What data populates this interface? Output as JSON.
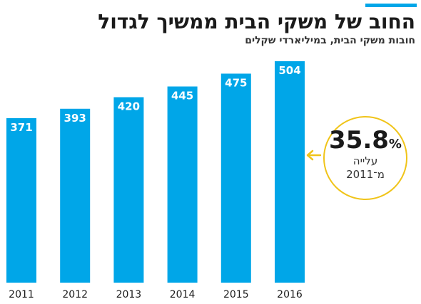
{
  "header": {
    "title": "החוב של משקי הבית ממשיך לגדול",
    "subtitle": "חובות משקי הבית, במיליארדי שקלים"
  },
  "colors": {
    "accent": "#00a6e8",
    "bar": "#00a6e8",
    "callout_ring": "#f0c419",
    "text": "#1a1a1a"
  },
  "callout": {
    "value": "35.8",
    "percent_sign": "%",
    "label": "עלייה",
    "since": "מ־2011"
  },
  "chart_data": {
    "type": "bar",
    "categories": [
      "2011",
      "2012",
      "2013",
      "2014",
      "2015",
      "2016"
    ],
    "values": [
      371,
      393,
      420,
      445,
      475,
      504
    ],
    "title": "החוב של משקי הבית ממשיך לגדול",
    "subtitle": "חובות משקי הבית, במיליארדי שקלים",
    "xlabel": "",
    "ylabel": "",
    "ylim": [
      0,
      504
    ],
    "grid": false,
    "legend": "none",
    "data_labels": true
  }
}
